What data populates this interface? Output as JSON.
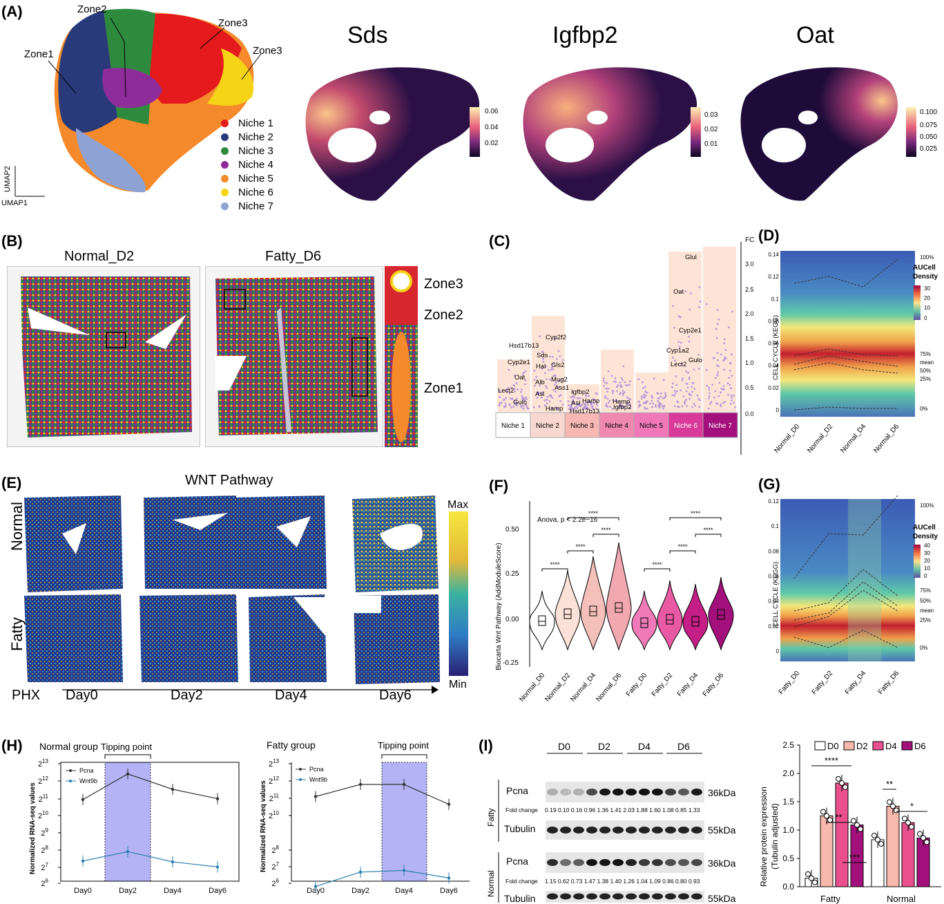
{
  "panels": {
    "A": {
      "label": "(A)",
      "zones": [
        "Zone1",
        "Zone2",
        "Zone3",
        "Zone3"
      ],
      "niches": [
        {
          "name": "Niche 1",
          "color": "#e41a1c"
        },
        {
          "name": "Niche 2",
          "color": "#283a7a"
        },
        {
          "name": "Niche 3",
          "color": "#2e8b3e"
        },
        {
          "name": "Niche 4",
          "color": "#8e2c9a"
        },
        {
          "name": "Niche 5",
          "color": "#f58a2c"
        },
        {
          "name": "Niche 6",
          "color": "#f5d418"
        },
        {
          "name": "Niche 7",
          "color": "#8ea3d4"
        }
      ],
      "axis_y": "UMAP2",
      "axis_x": "UMAP1",
      "genes": [
        {
          "name": "Sds",
          "ticks": [
            "0.06",
            "0.04",
            "0.02"
          ]
        },
        {
          "name": "Igfbp2",
          "ticks": [
            "0.03",
            "0.02",
            "0.01"
          ]
        },
        {
          "name": "Oat",
          "ticks": [
            "0.100",
            "0.075",
            "0.050",
            "0.025"
          ]
        }
      ]
    },
    "B": {
      "label": "(B)",
      "titles": [
        "Normal_D2",
        "Fatty_D6"
      ],
      "zones": [
        "Zone3",
        "Zone2",
        "Zone1"
      ]
    },
    "C": {
      "label": "(C)",
      "axis_title": "FC",
      "niches": [
        "Niche 1",
        "Niche 2",
        "Niche 3",
        "Niche 4",
        "Niche 5",
        "Niche 6",
        "Niche 7"
      ],
      "niche_colors": [
        "#ffffff",
        "#f9d8d2",
        "#f7b8b4",
        "#f089b0",
        "#f078b8",
        "#d93a9a",
        "#a3107c"
      ],
      "genes": {
        "niche1": [
          "Cyp2e1",
          "Oat",
          "Lect2",
          "Gulo"
        ],
        "niche2": [
          "Hsd17b13",
          "Cyp2f2",
          "Sds",
          "Gls2",
          "Hal",
          "Mug2",
          "Alb",
          "Ass1",
          "Asl",
          "Hamp"
        ],
        "niche3": [
          "Igfbp2",
          "Asl",
          "Hamp",
          "Hsd17b13"
        ],
        "niche4": [
          "Hamp",
          "Igfbp2"
        ],
        "niche6": [
          "Glul",
          "Oat",
          "Cyp2e1",
          "Cyp1a2",
          "Gulo",
          "Lect2"
        ]
      },
      "ticks": [
        "3.0",
        "2.5",
        "2.0",
        "1.5",
        "1.0",
        "0.5",
        "0.0"
      ]
    },
    "D": {
      "label": "(D)",
      "ylabel": "CELL CYCLE (KEGG)",
      "yticks": [
        "0.14",
        "0.12",
        "0.1",
        "0.08",
        "0.06",
        "0.04",
        "0.02",
        "0"
      ],
      "categories": [
        "Normal_D0",
        "Normal_D2",
        "Normal_D4",
        "Normal_D6"
      ],
      "legend_title_1": "AUCell",
      "legend_title_2": "Density",
      "legend_ticks": [
        "30",
        "20",
        "10",
        "0"
      ],
      "quantiles": [
        "100%",
        "75%",
        "mean",
        "50%",
        "25%",
        "0%"
      ]
    },
    "E": {
      "label": "(E)",
      "title": "WNT Pathway",
      "rows": [
        "Normal",
        "Fatty"
      ],
      "days": [
        "Day0",
        "Day2",
        "Day4",
        "Day6"
      ],
      "phx": "PHX",
      "scale_max": "Max",
      "scale_min": "Min"
    },
    "F": {
      "label": "(F)",
      "ylabel": "Biocarta Wnt Pathway (AddModuleScore)",
      "stat": "Anova, p < 2.2e−16",
      "sig": "****",
      "yticks": [
        "0.50",
        "0.25",
        "0.00",
        "-0.25"
      ]
    },
    "G": {
      "label": "(G)",
      "ylabel": "CELL CYCLE (KEGG)",
      "yticks": [
        "0.12",
        "0.1",
        "0.08",
        "0.06",
        "0.04",
        "0.02",
        "0"
      ],
      "categories": [
        "Fatty_D0",
        "Fatty_D2",
        "Fatty_D4",
        "Fatty_D6"
      ],
      "legend_title_1": "AUCell",
      "legend_title_2": "Density",
      "legend_ticks": [
        "40",
        "30",
        "20",
        "10",
        "0"
      ],
      "quantiles": [
        "100%",
        "75%",
        "50%",
        "mean",
        "25%",
        "0%"
      ]
    },
    "H": {
      "label": "(H)",
      "normal_title": "Normal group",
      "fatty_title": "Fatty group",
      "tipping": "Tipping point",
      "ylabel": "Normalized RNA-seq values",
      "legend": [
        "Pcna",
        "Wnt9b"
      ],
      "days": [
        "Day0",
        "Day2",
        "Day4",
        "Day6"
      ],
      "yticks_exp": [
        "13",
        "12",
        "11",
        "10",
        "9",
        "8",
        "7",
        "6"
      ],
      "ybase": "2"
    },
    "I": {
      "label": "(I)",
      "lanes": [
        "D0",
        "D2",
        "D4",
        "D6"
      ],
      "groups": [
        "Fatty",
        "Normal"
      ],
      "proteins": [
        "Pcna",
        "Tubulin",
        "Pcna",
        "Tubulin"
      ],
      "kda": [
        "36kDa",
        "55kDa",
        "36kDa",
        "55kDa"
      ],
      "fold_label": "Fold change",
      "fatty_fc": "0.19 0.10 0.16 0.96 1.36 1.41 2.03 1.88 1.60 1.08 0.85 1.33",
      "normal_fc": "1.15 0.62 0.73 1.47 1.38 1.40 1.26 1.04 1.09 0.86 0.80 0.93",
      "bar_ylabel_1": "Relative protein expression",
      "bar_ylabel_2": "(Tubulin adjusted)",
      "bar_yticks": [
        "2.5",
        "2.0",
        "1.5",
        "1.0",
        "0.5",
        "0.0"
      ],
      "bar_sig": [
        "****",
        "**",
        "***",
        "**",
        "*"
      ]
    }
  },
  "chart_data": [
    {
      "type": "line",
      "title": "Normal group",
      "ylabel": "Normalized RNA-seq values",
      "categories": [
        "Day0",
        "Day2",
        "Day4",
        "Day6"
      ],
      "series": [
        {
          "name": "Pcna",
          "values": [
            10.9,
            12.4,
            11.5,
            10.95
          ]
        },
        {
          "name": "Wnt9b",
          "values": [
            7.3,
            7.85,
            7.25,
            6.95
          ]
        }
      ]
    },
    {
      "type": "line",
      "title": "Fatty group",
      "ylabel": "Normalized RNA-seq values",
      "categories": [
        "Day0",
        "Day2",
        "Day4",
        "Day6"
      ],
      "series": [
        {
          "name": "Pcna",
          "values": [
            11.1,
            11.8,
            11.8,
            10.65
          ]
        },
        {
          "name": "Wnt9b",
          "values": [
            6.85,
            7.7,
            7.8,
            7.35
          ]
        }
      ]
    },
    {
      "type": "bar",
      "ylabel": "Relative protein expression (Tubulin adjusted)",
      "categories": [
        "Fatty",
        "Normal"
      ],
      "ylim": [
        0,
        2.5
      ],
      "series": [
        {
          "name": "D0",
          "values": [
            0.15,
            0.83
          ],
          "color": "#ffffff"
        },
        {
          "name": "D2",
          "values": [
            1.25,
            1.42
          ],
          "color": "#f7b8ad"
        },
        {
          "name": "D4",
          "values": [
            1.83,
            1.13
          ],
          "color": "#e9508d"
        },
        {
          "name": "D6",
          "values": [
            1.09,
            0.86
          ],
          "color": "#a3107c"
        }
      ]
    }
  ]
}
